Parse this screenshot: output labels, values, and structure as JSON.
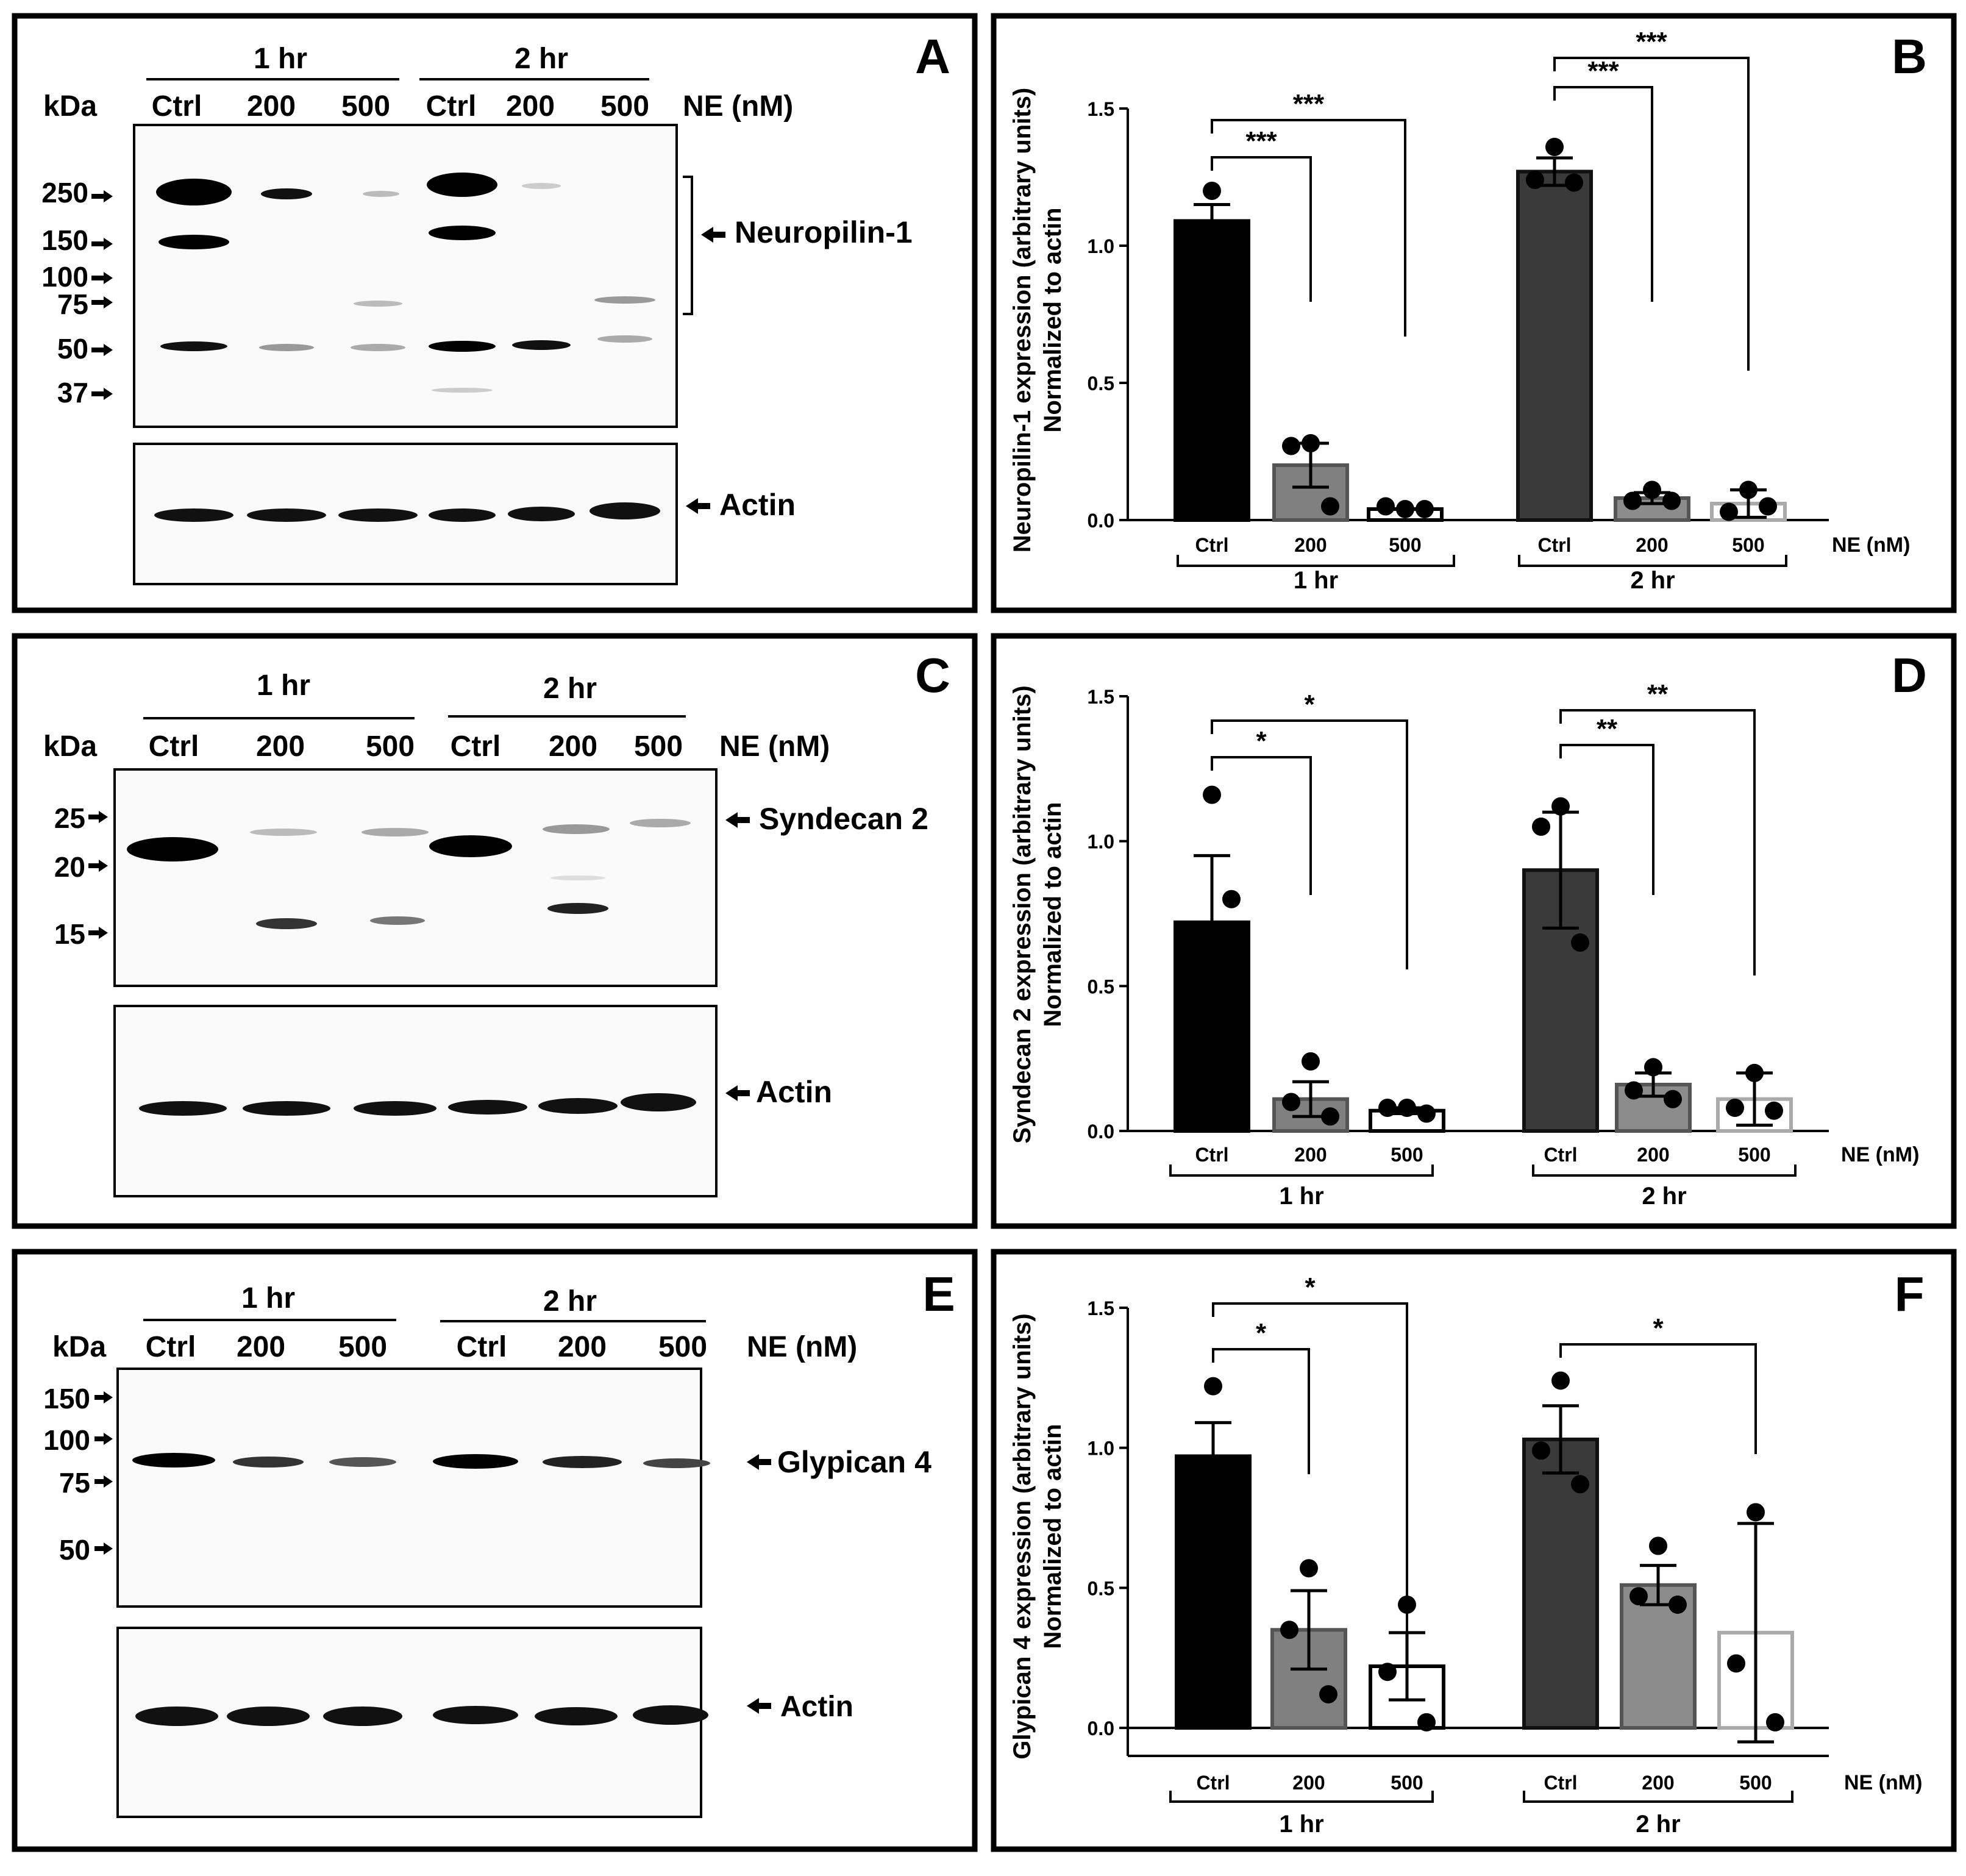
{
  "panels": {
    "A": {
      "letter": "A"
    },
    "B": {
      "letter": "B"
    },
    "C": {
      "letter": "C"
    },
    "D": {
      "letter": "D"
    },
    "E": {
      "letter": "E"
    },
    "F": {
      "letter": "F"
    }
  },
  "blots": [
    {
      "id": "A",
      "time_labels": [
        "1 hr",
        "2 hr"
      ],
      "lane_labels": [
        "Ctrl",
        "200",
        "500",
        "Ctrl",
        "200",
        "500"
      ],
      "treatment_label": "NE (nM)",
      "kda_label": "kDa",
      "markers": [
        "250",
        "150",
        "100",
        "75",
        "50",
        "37"
      ],
      "protein_label": "Neuropilin-1",
      "actin_label": "Actin"
    },
    {
      "id": "C",
      "time_labels": [
        "1 hr",
        "2 hr"
      ],
      "lane_labels": [
        "Ctrl",
        "200",
        "500",
        "Ctrl",
        "200",
        "500"
      ],
      "treatment_label": "NE (nM)",
      "kda_label": "kDa",
      "markers": [
        "25",
        "20",
        "15"
      ],
      "protein_label": "Syndecan 2",
      "actin_label": "Actin"
    },
    {
      "id": "E",
      "time_labels": [
        "1 hr",
        "2 hr"
      ],
      "lane_labels": [
        "Ctrl",
        "200",
        "500",
        "Ctrl",
        "200",
        "500"
      ],
      "treatment_label": "NE (nM)",
      "kda_label": "kDa",
      "markers": [
        "150",
        "100",
        "75",
        "50"
      ],
      "protein_label": "Glypican 4",
      "actin_label": "Actin"
    }
  ],
  "chart_data": [
    {
      "panel": "B",
      "type": "bar",
      "ylabel_line1": "Neuropilin-1 expression (arbitrary units)",
      "ylabel_line2": "Normalized to actin",
      "ylim": [
        0,
        1.5
      ],
      "yticks": [
        "0.0",
        "0.5",
        "1.0",
        "1.5"
      ],
      "categories": [
        "Ctrl",
        "200",
        "500",
        "Ctrl",
        "200",
        "500"
      ],
      "groups": [
        "1 hr",
        "2 hr"
      ],
      "treatment_label": "NE (nM)",
      "values": [
        1.09,
        0.2,
        0.04,
        1.27,
        0.08,
        0.06
      ],
      "errors": [
        0.06,
        0.08,
        0.0,
        0.05,
        0.02,
        0.05
      ],
      "points": [
        [
          1.2,
          1.05,
          1.02
        ],
        [
          0.28,
          0.27,
          0.05
        ],
        [
          0.04,
          0.05,
          0.04
        ],
        [
          1.36,
          1.24,
          1.23
        ],
        [
          0.11,
          0.07,
          0.07
        ],
        [
          0.11,
          0.03,
          0.05
        ]
      ],
      "fills": [
        "#000000",
        "#808080",
        "#ffffff",
        "#3a3a3a",
        "#8c8c8c",
        "#ffffff"
      ],
      "strokes": [
        "#000000",
        "#555555",
        "#000000",
        "#111111",
        "#555555",
        "#aaaaaa"
      ],
      "sig": [
        {
          "from": 0,
          "to": 1,
          "label": "***"
        },
        {
          "from": 0,
          "to": 2,
          "label": "***"
        },
        {
          "from": 3,
          "to": 4,
          "label": "***"
        },
        {
          "from": 3,
          "to": 5,
          "label": "***"
        }
      ]
    },
    {
      "panel": "D",
      "type": "bar",
      "ylabel_line1": "Syndecan 2 expression (arbitrary units)",
      "ylabel_line2": "Normalized to actin",
      "ylim": [
        0,
        1.5
      ],
      "yticks": [
        "0.0",
        "0.5",
        "1.0",
        "1.5"
      ],
      "categories": [
        "Ctrl",
        "200",
        "500",
        "Ctrl",
        "200",
        "500"
      ],
      "groups": [
        "1 hr",
        "2 hr"
      ],
      "treatment_label": "NE (nM)",
      "values": [
        0.72,
        0.11,
        0.07,
        0.9,
        0.16,
        0.11
      ],
      "errors": [
        0.23,
        0.06,
        0.01,
        0.2,
        0.04,
        0.09
      ],
      "points": [
        [
          1.16,
          0.2,
          0.8
        ],
        [
          0.24,
          0.1,
          0.05
        ],
        [
          0.08,
          0.08,
          0.06
        ],
        [
          1.12,
          1.05,
          0.65
        ],
        [
          0.22,
          0.14,
          0.11
        ],
        [
          0.2,
          0.08,
          0.07
        ]
      ],
      "fills": [
        "#000000",
        "#808080",
        "#ffffff",
        "#3a3a3a",
        "#8c8c8c",
        "#ffffff"
      ],
      "strokes": [
        "#000000",
        "#555555",
        "#000000",
        "#111111",
        "#555555",
        "#aaaaaa"
      ],
      "sig": [
        {
          "from": 0,
          "to": 1,
          "label": "*"
        },
        {
          "from": 0,
          "to": 2,
          "label": "*"
        },
        {
          "from": 3,
          "to": 4,
          "label": "**"
        },
        {
          "from": 3,
          "to": 5,
          "label": "**"
        }
      ]
    },
    {
      "panel": "F",
      "type": "bar",
      "ylabel_line1": "Glypican 4 expression (arbitrary units)",
      "ylabel_line2": "Normalized to actin",
      "ylim": [
        -0.1,
        1.5
      ],
      "yticks": [
        "0.0",
        "0.5",
        "1.0",
        "1.5"
      ],
      "categories": [
        "Ctrl",
        "200",
        "500",
        "Ctrl",
        "200",
        "500"
      ],
      "groups": [
        "1 hr",
        "2 hr"
      ],
      "treatment_label": "NE (nM)",
      "values": [
        0.97,
        0.35,
        0.22,
        1.03,
        0.51,
        0.34
      ],
      "errors": [
        0.12,
        0.14,
        0.12,
        0.12,
        0.07,
        0.39
      ],
      "points": [
        [
          1.22,
          0.88,
          0.84
        ],
        [
          0.57,
          0.35,
          0.12
        ],
        [
          0.44,
          0.2,
          0.02
        ],
        [
          1.24,
          0.99,
          0.87
        ],
        [
          0.65,
          0.47,
          0.44
        ],
        [
          0.77,
          0.23,
          0.02
        ]
      ],
      "fills": [
        "#000000",
        "#808080",
        "#ffffff",
        "#3a3a3a",
        "#8c8c8c",
        "#ffffff"
      ],
      "strokes": [
        "#000000",
        "#555555",
        "#000000",
        "#111111",
        "#555555",
        "#aaaaaa"
      ],
      "sig": [
        {
          "from": 0,
          "to": 1,
          "label": "*"
        },
        {
          "from": 0,
          "to": 2,
          "label": "*"
        },
        {
          "from": 3,
          "to": 5,
          "label": "*"
        }
      ]
    }
  ]
}
